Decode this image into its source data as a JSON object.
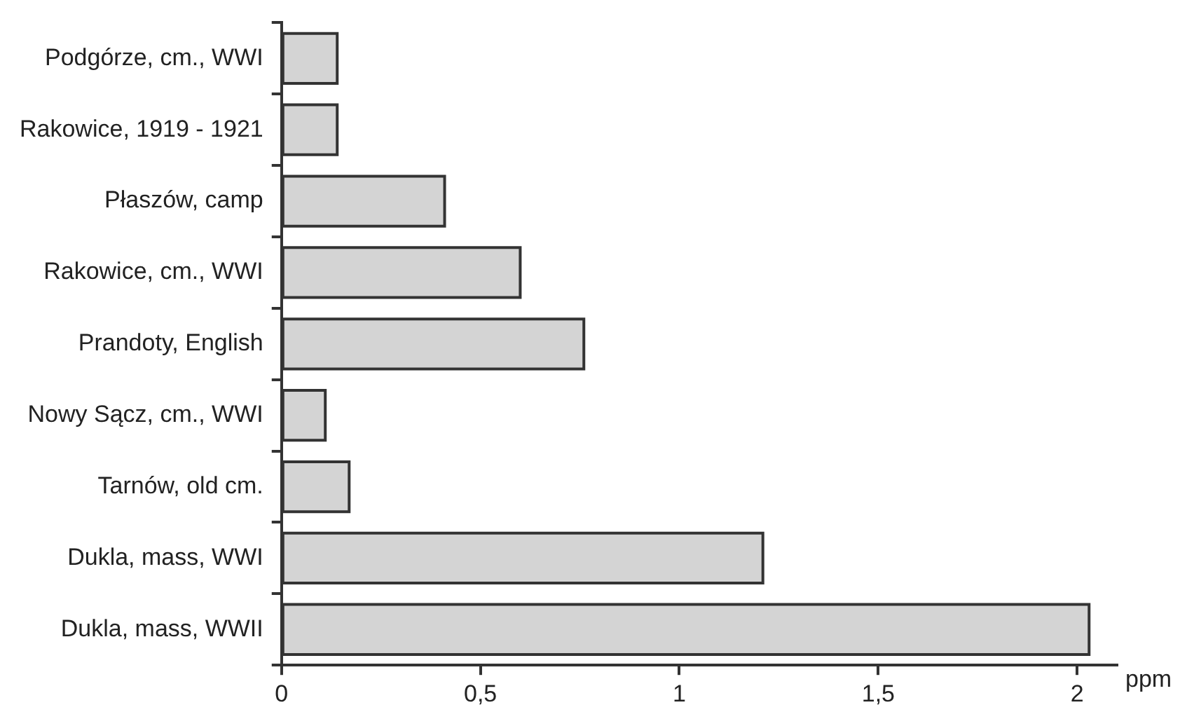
{
  "chart_data": {
    "type": "bar",
    "orientation": "horizontal",
    "xlabel": "ppm",
    "categories": [
      "Podgórze, cm., WWI",
      "Rakowice, 1919 - 1921",
      "Płaszów, camp",
      "Rakowice, cm., WWI",
      "Prandoty, English",
      "Nowy Sącz, cm., WWI",
      "Tarnów, old cm.",
      "Dukla, mass, WWI",
      "Dukla, mass, WWII"
    ],
    "values": [
      0.14,
      0.14,
      0.41,
      0.6,
      0.76,
      0.11,
      0.17,
      1.21,
      2.03
    ],
    "color": "#d4d4d4",
    "xlim": [
      0,
      2.1
    ],
    "xticks": [
      0,
      {
        "value": 0.5,
        "label": "0,5"
      },
      1,
      {
        "value": 1.5,
        "label": "1,5"
      },
      2
    ],
    "grid": false,
    "legend": false
  }
}
